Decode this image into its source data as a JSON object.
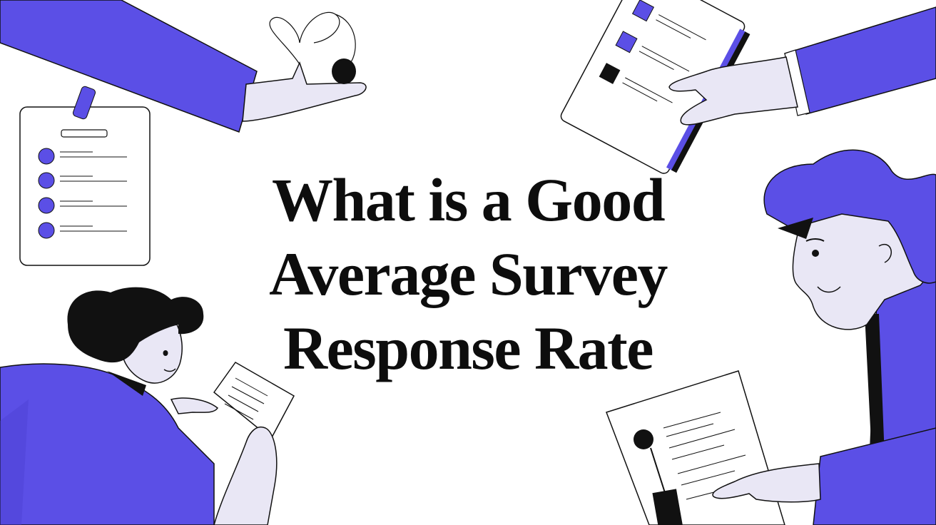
{
  "headline": {
    "lines": [
      "What is a Good",
      "Average Survey",
      "Response Rate"
    ]
  },
  "palette": {
    "accent": "#5b4fe6",
    "skin": "#e9e7f5",
    "ink": "#111111",
    "paper": "#ffffff"
  },
  "icons": [
    "clipboard-icon",
    "person-avatar-icon",
    "document-icon",
    "tablet-checklist-icon",
    "hand-icon"
  ]
}
